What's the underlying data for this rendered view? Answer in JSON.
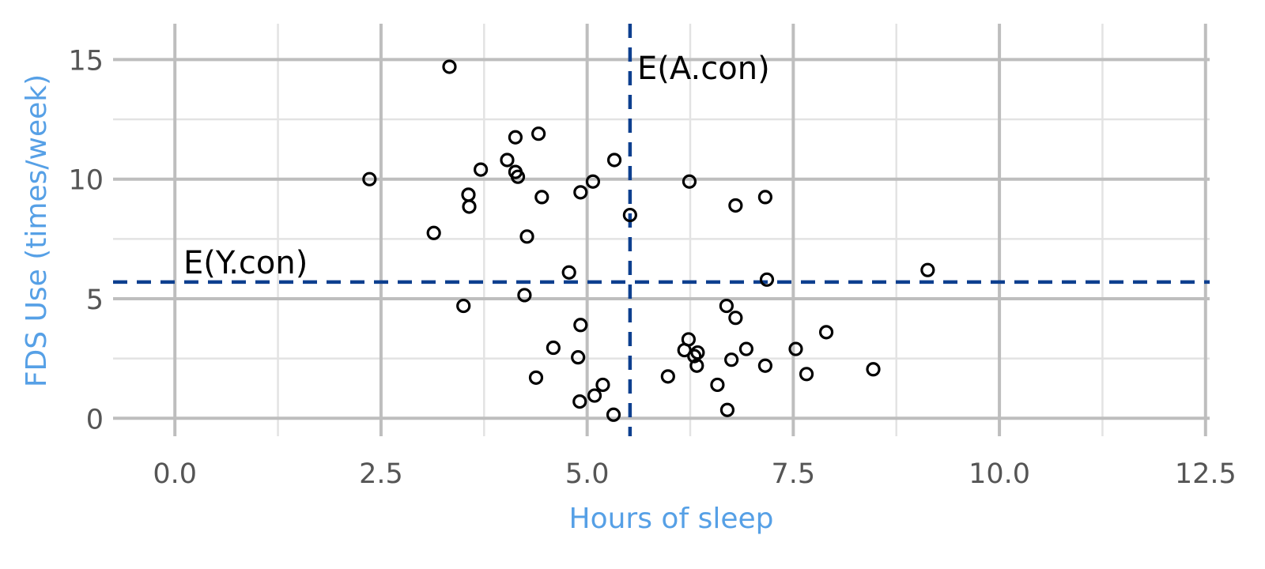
{
  "chart_data": {
    "type": "scatter",
    "xlabel": "Hours of sleep",
    "ylabel": "FDS Use (times/week)",
    "xlim": [
      -0.75,
      12.55
    ],
    "ylim": [
      -0.75,
      16.5
    ],
    "x_ticks": [
      0.0,
      2.5,
      5.0,
      7.5,
      10.0,
      12.5
    ],
    "x_tick_labels": [
      "0.0",
      "2.5",
      "5.0",
      "7.5",
      "10.0",
      "12.5"
    ],
    "y_ticks": [
      0,
      5,
      10,
      15
    ],
    "y_tick_labels": [
      "0",
      "5",
      "10",
      "15"
    ],
    "grid": true,
    "reference_lines": [
      {
        "orientation": "vertical",
        "value": 5.52,
        "label": "E(A.con)",
        "color": "#0d3f8f"
      },
      {
        "orientation": "horizontal",
        "value": 5.7,
        "label": "E(Y.con)",
        "color": "#0d3f8f"
      }
    ],
    "series": [
      {
        "points": [
          [
            3.33,
            14.7
          ],
          [
            4.41,
            11.9
          ],
          [
            4.13,
            11.75
          ],
          [
            3.71,
            10.4
          ],
          [
            4.03,
            10.8
          ],
          [
            4.13,
            10.3
          ],
          [
            4.16,
            10.1
          ],
          [
            2.36,
            10.0
          ],
          [
            5.33,
            10.8
          ],
          [
            5.07,
            9.9
          ],
          [
            4.92,
            9.45
          ],
          [
            4.45,
            9.25
          ],
          [
            3.56,
            9.35
          ],
          [
            3.57,
            8.85
          ],
          [
            5.52,
            8.5
          ],
          [
            6.24,
            9.9
          ],
          [
            6.8,
            8.9
          ],
          [
            7.16,
            9.25
          ],
          [
            3.14,
            7.75
          ],
          [
            4.27,
            7.6
          ],
          [
            4.78,
            6.1
          ],
          [
            4.24,
            5.15
          ],
          [
            3.5,
            4.7
          ],
          [
            7.18,
            5.8
          ],
          [
            9.13,
            6.2
          ],
          [
            6.69,
            4.7
          ],
          [
            6.8,
            4.2
          ],
          [
            4.92,
            3.9
          ],
          [
            4.59,
            2.95
          ],
          [
            4.89,
            2.55
          ],
          [
            4.38,
            1.7
          ],
          [
            4.91,
            0.7
          ],
          [
            5.09,
            0.95
          ],
          [
            5.19,
            1.4
          ],
          [
            5.32,
            0.15
          ],
          [
            5.98,
            1.75
          ],
          [
            6.23,
            3.3
          ],
          [
            6.18,
            2.85
          ],
          [
            6.3,
            2.6
          ],
          [
            6.34,
            2.75
          ],
          [
            6.33,
            2.2
          ],
          [
            6.75,
            2.45
          ],
          [
            6.93,
            2.9
          ],
          [
            6.58,
            1.4
          ],
          [
            6.7,
            0.35
          ],
          [
            7.16,
            2.2
          ],
          [
            7.53,
            2.9
          ],
          [
            7.66,
            1.85
          ],
          [
            7.9,
            3.6
          ],
          [
            8.47,
            2.05
          ]
        ]
      }
    ]
  }
}
